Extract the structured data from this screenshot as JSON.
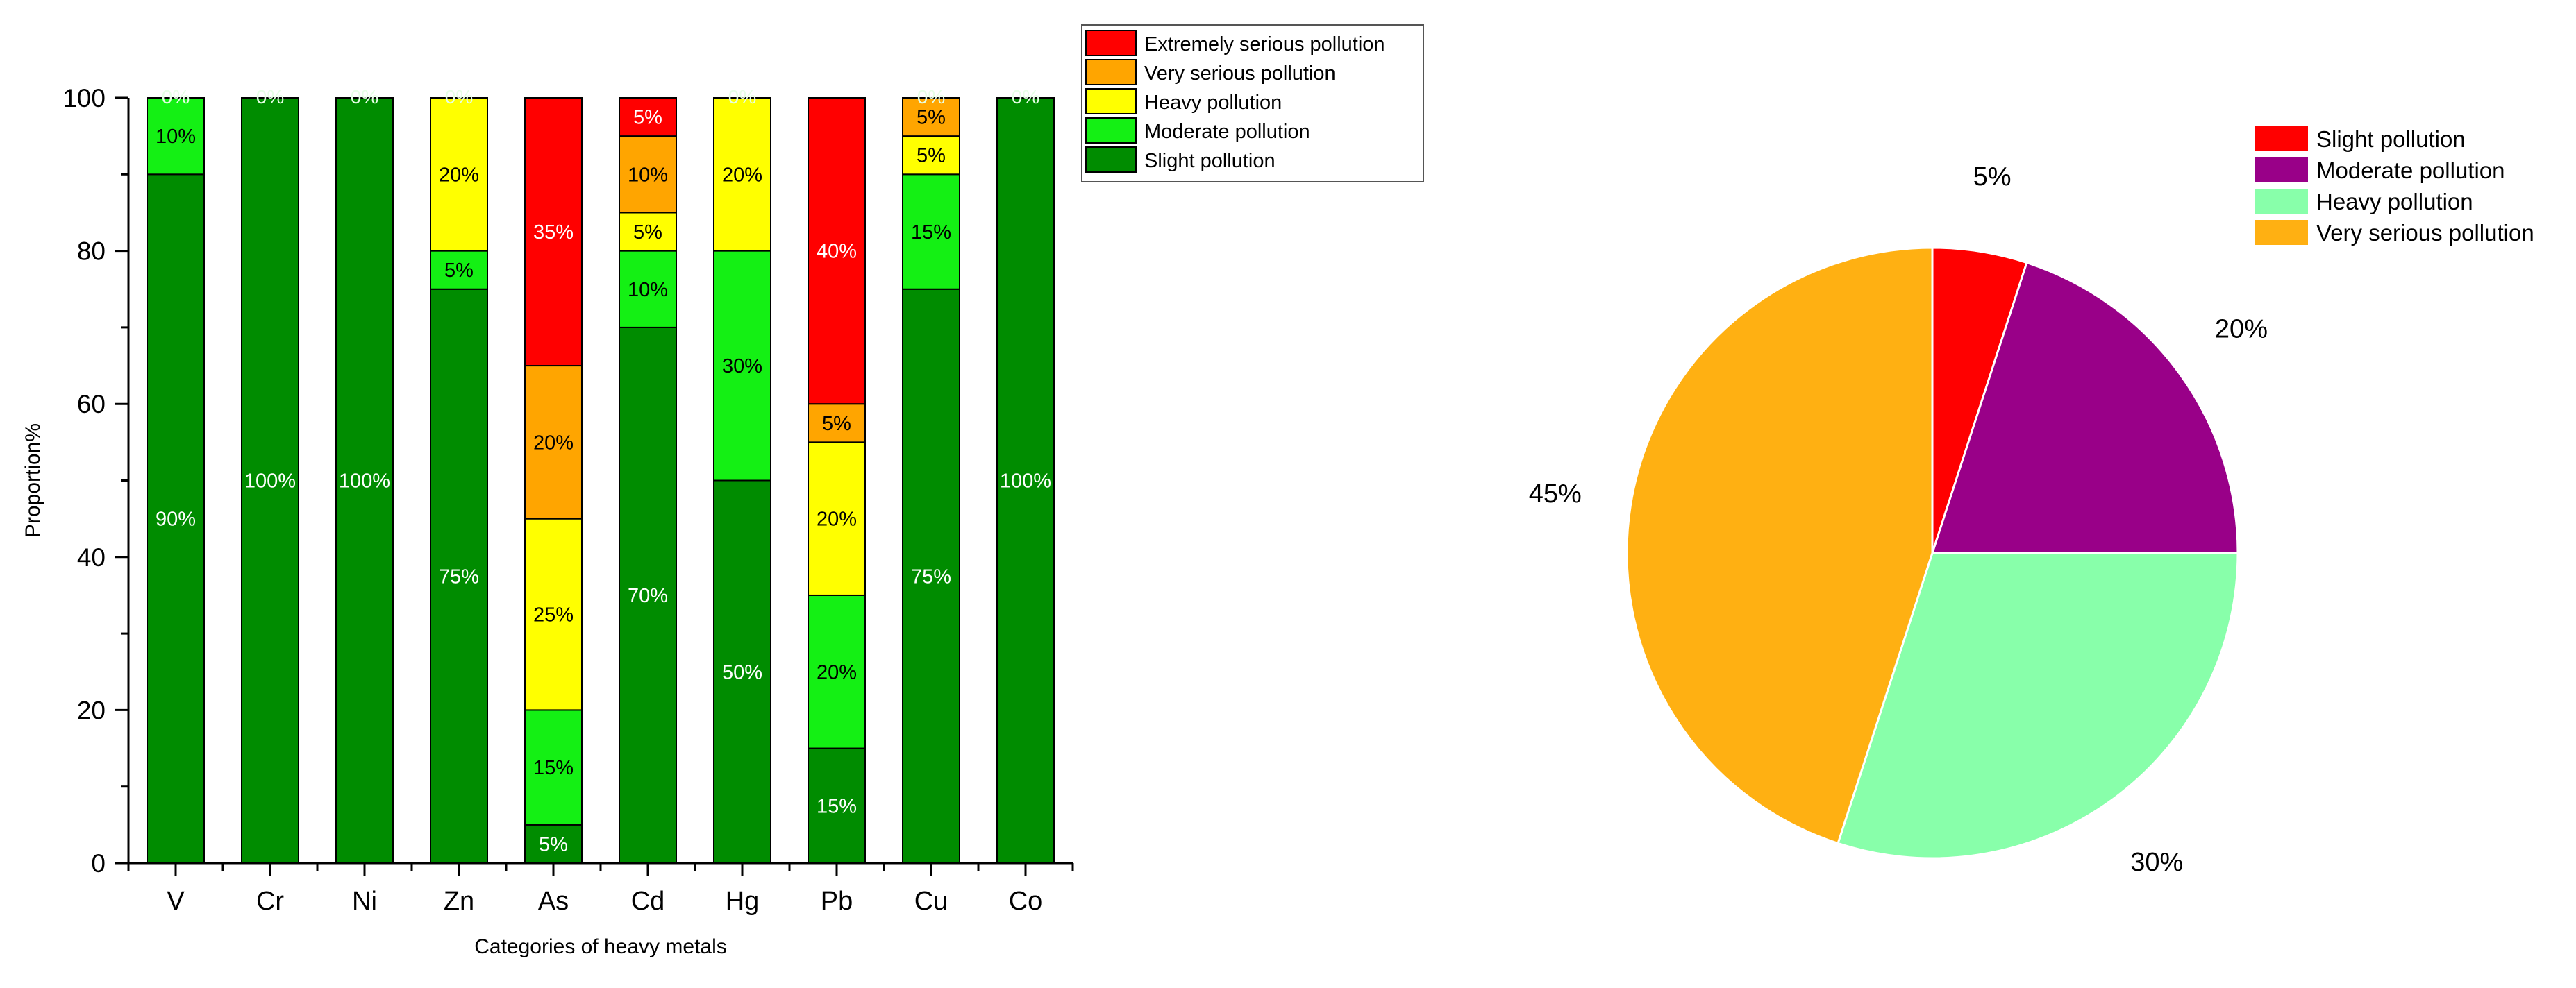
{
  "chart_data": [
    {
      "type": "bar",
      "stacked": true,
      "xlabel": "Categories of heavy metals",
      "ylabel": "Proportion%",
      "ylim": [
        0,
        100
      ],
      "yticks": [
        0,
        20,
        40,
        60,
        80,
        100
      ],
      "categories": [
        "V",
        "Cr",
        "Ni",
        "Zn",
        "As",
        "Cd",
        "Hg",
        "Pb",
        "Cu",
        "Co"
      ],
      "legend_position": "top-right",
      "series": [
        {
          "name": "Slight pollution",
          "color": "#008c00",
          "label_color": "#ffffff",
          "values": [
            90,
            100,
            100,
            75,
            5,
            70,
            50,
            15,
            75,
            100
          ],
          "labels": [
            "90%",
            "100%",
            "100%",
            "75%",
            "5%",
            "70%",
            "50%",
            "15%",
            "75%",
            "100%"
          ]
        },
        {
          "name": "Moderate pollution",
          "color": "#14f014",
          "label_color": "#000000",
          "values": [
            10,
            0,
            0,
            5,
            15,
            10,
            30,
            20,
            15,
            0
          ],
          "labels": [
            "10%",
            "0%",
            "0%",
            "5%",
            "15%",
            "10%",
            "30%",
            "20%",
            "15%",
            "0%"
          ]
        },
        {
          "name": "Heavy pollution",
          "color": "#ffff00",
          "label_color": "#000000",
          "values": [
            0,
            0,
            0,
            20,
            25,
            5,
            20,
            20,
            5,
            0
          ],
          "labels": [
            "0%",
            "0%",
            "0%",
            "20%",
            "25%",
            "5%",
            "20%",
            "20%",
            "5%",
            "0%"
          ]
        },
        {
          "name": "Very serious pollution",
          "color": "#ffa500",
          "label_color": "#000000",
          "values": [
            0,
            0,
            0,
            0,
            20,
            10,
            0,
            5,
            5,
            0
          ],
          "labels": [
            "0%",
            "0%",
            "0%",
            "0%",
            "20%",
            "10%",
            "0%",
            "5%",
            "5%",
            "0%"
          ]
        },
        {
          "name": "Extremely serious pollution",
          "color": "#ff0000",
          "label_color": "#ffffff",
          "values": [
            0,
            0,
            0,
            0,
            35,
            5,
            0,
            40,
            0,
            0
          ],
          "labels": [
            "0%",
            "0%",
            "0%",
            "0%",
            "35%",
            "5%",
            "0%",
            "40%",
            "0%",
            "0%"
          ]
        }
      ],
      "zero_labels_on_top": [
        {
          "category": "V",
          "text": "0%"
        },
        {
          "category": "Cr",
          "text": "0%"
        },
        {
          "category": "Ni",
          "text": "0%"
        },
        {
          "category": "Zn",
          "text": "0%"
        },
        {
          "category": "Hg",
          "text": "0%"
        },
        {
          "category": "Cu",
          "text": "0%"
        },
        {
          "category": "Co",
          "text": "0%"
        }
      ]
    },
    {
      "type": "pie",
      "legend_position": "top-right",
      "slices": [
        {
          "name": "Slight pollution",
          "value": 5,
          "label": "5%",
          "color": "#ff0000"
        },
        {
          "name": "Moderate pollution",
          "value": 20,
          "label": "20%",
          "color": "#990088"
        },
        {
          "name": "Heavy pollution",
          "value": 30,
          "label": "30%",
          "color": "#88ffaa"
        },
        {
          "name": "Very serious pollution",
          "value": 45,
          "label": "45%",
          "color": "#ffb012"
        }
      ]
    }
  ]
}
